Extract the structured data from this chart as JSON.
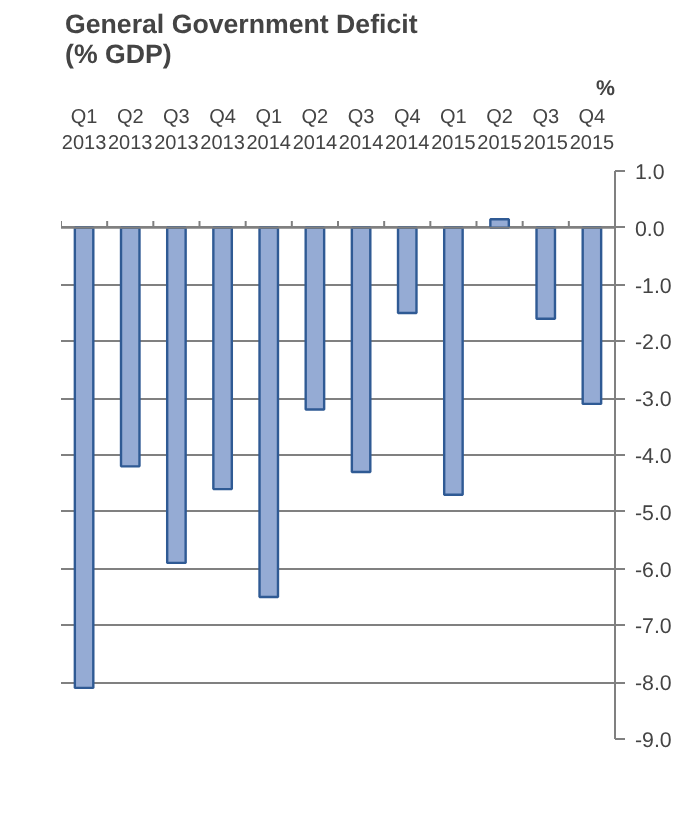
{
  "chart_data": {
    "type": "bar",
    "title": "General Government Deficit\n(% GDP)",
    "ylabel": "%",
    "categories": [
      "Q1\n2013",
      "Q2\n2013",
      "Q3\n2013",
      "Q4\n2013",
      "Q1\n2014",
      "Q2\n2014",
      "Q3\n2014",
      "Q4\n2014",
      "Q1\n2015",
      "Q2\n2015",
      "Q3\n2015",
      "Q4\n2015"
    ],
    "values": [
      -8.1,
      -4.2,
      -5.9,
      -4.6,
      -6.5,
      -3.2,
      -4.3,
      -1.5,
      -4.7,
      0.15,
      -1.6,
      -3.1
    ],
    "color": "#95abd4",
    "ylim": [
      -9.0,
      1.0
    ],
    "yticks": [
      {
        "value": 1,
        "label": "1.0"
      },
      {
        "value": 0,
        "label": "0.0"
      },
      {
        "value": -1,
        "label": "-1.0"
      },
      {
        "value": -2,
        "label": "-2.0"
      },
      {
        "value": -3,
        "label": "-3.0"
      },
      {
        "value": -4,
        "label": "-4.0"
      },
      {
        "value": -5,
        "label": "-5.0"
      },
      {
        "value": -6,
        "label": "-6.0"
      },
      {
        "value": -7,
        "label": "-7.0"
      },
      {
        "value": -8,
        "label": "-8.0"
      },
      {
        "value": -9,
        "label": "-9.0"
      }
    ],
    "grid": "y"
  }
}
